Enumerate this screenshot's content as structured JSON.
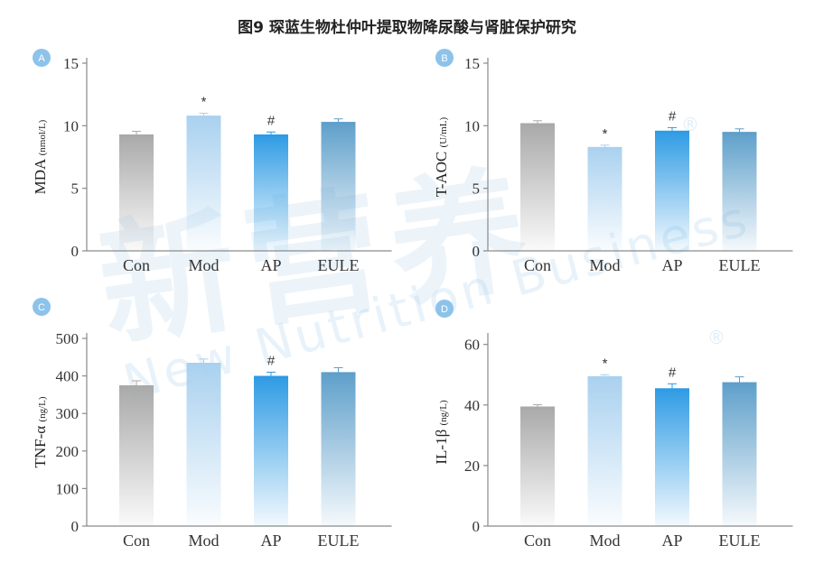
{
  "title": "图9 琛蓝生物杜仲叶提取物降尿酸与肾脏保护研究",
  "watermark": {
    "cn": "新营养",
    "en": "New Nutrition Business",
    "reg": "®"
  },
  "colors": {
    "con": "#a9a9a9",
    "mod": "#a9d1ef",
    "ap": "#2e9be4",
    "eule": "#5e9fca",
    "axis": "#8a8a8a",
    "badge": "#8dc3ea"
  },
  "chart_data": [
    {
      "panel": "A",
      "type": "bar",
      "categories": [
        "Con",
        "Mod",
        "AP",
        "EULE"
      ],
      "values": [
        9.3,
        10.8,
        9.3,
        10.3
      ],
      "errors": [
        0.25,
        0.2,
        0.2,
        0.25
      ],
      "marks": [
        "",
        "*",
        "#",
        ""
      ],
      "ylabel": "MDA",
      "yunit": "(nmol/L)",
      "ylim": [
        0,
        15
      ],
      "yticks": [
        "0",
        "5",
        "10",
        "15"
      ]
    },
    {
      "panel": "B",
      "type": "bar",
      "categories": [
        "Con",
        "Mod",
        "AP",
        "EULE"
      ],
      "values": [
        10.2,
        8.3,
        9.6,
        9.5
      ],
      "errors": [
        0.2,
        0.15,
        0.25,
        0.25
      ],
      "marks": [
        "",
        "*",
        "#",
        ""
      ],
      "ylabel": "T-AOC",
      "yunit": "(U/mL)",
      "ylim": [
        0,
        15
      ],
      "yticks": [
        "0",
        "5",
        "10",
        "15"
      ]
    },
    {
      "panel": "C",
      "type": "bar",
      "categories": [
        "Con",
        "Mod",
        "AP",
        "EULE"
      ],
      "values": [
        375,
        435,
        400,
        410
      ],
      "errors": [
        12,
        10,
        10,
        12
      ],
      "marks": [
        "",
        "",
        "#",
        ""
      ],
      "ylabel": "TNF-α",
      "yunit": "(ng/L)",
      "ylim": [
        0,
        500
      ],
      "yticks": [
        "0",
        "100",
        "200",
        "300",
        "400",
        "500"
      ]
    },
    {
      "panel": "D",
      "type": "bar",
      "categories": [
        "Con",
        "Mod",
        "AP",
        "EULE"
      ],
      "values": [
        39.5,
        49.5,
        45.5,
        47.5
      ],
      "errors": [
        0.6,
        0.5,
        1.5,
        1.8
      ],
      "marks": [
        "",
        "*",
        "#",
        ""
      ],
      "ylabel": "IL-1β",
      "yunit": "(ng/L)",
      "ylim": [
        0,
        62
      ],
      "yticks": [
        "0",
        "20",
        "40",
        "60"
      ]
    }
  ]
}
